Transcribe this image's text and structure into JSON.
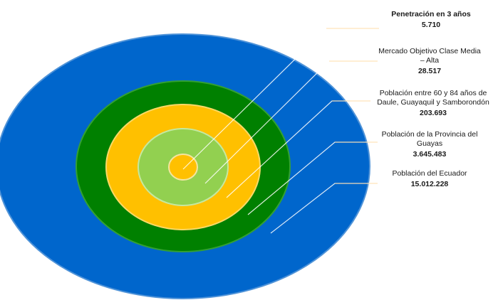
{
  "diagram": {
    "levels": [
      {
        "name": "Penetración en 3 años",
        "value": "5.710",
        "color": "#ffc000"
      },
      {
        "name": "Mercado Objetivo Clase Media – Alta",
        "value": "28.517",
        "color": "#92d050"
      },
      {
        "name": "Población entre 60 y 84 años de Daule, Guayaquil y Samborondón",
        "value": "203.693",
        "color": "#ffc000"
      },
      {
        "name": "Población de la Provincia del Guayas",
        "value": "3.645.483",
        "color": "#008000"
      },
      {
        "name": "Población del Ecuador",
        "value": "15.012.228",
        "color": "#0066cc"
      }
    ]
  }
}
